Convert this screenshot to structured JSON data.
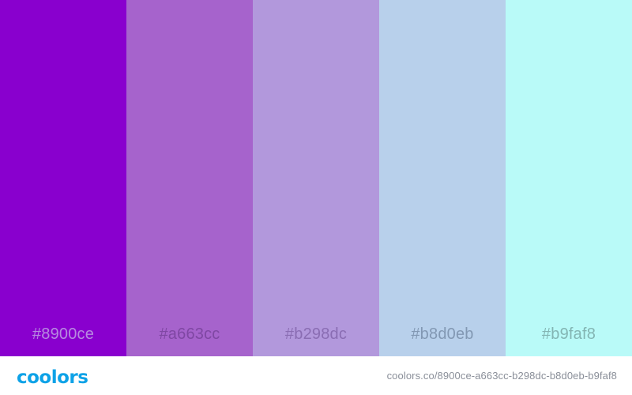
{
  "palette": {
    "swatches": [
      {
        "hex_label": "#8900ce",
        "color": "#8900ce",
        "text_color": "#b78ae0"
      },
      {
        "hex_label": "#a663cc",
        "color": "#a663cc",
        "text_color": "#7f47a3"
      },
      {
        "hex_label": "#b298dc",
        "color": "#b298dc",
        "text_color": "#8a6db3"
      },
      {
        "hex_label": "#b8d0eb",
        "color": "#b8d0eb",
        "text_color": "#8298b3"
      },
      {
        "hex_label": "#b9faf8",
        "color": "#b9faf8",
        "text_color": "#83b5b3"
      }
    ]
  },
  "footer": {
    "logo_text": "coolors",
    "logo_color": "#0da2e7",
    "url": "coolors.co/8900ce-a663cc-b298dc-b8d0eb-b9faf8"
  }
}
